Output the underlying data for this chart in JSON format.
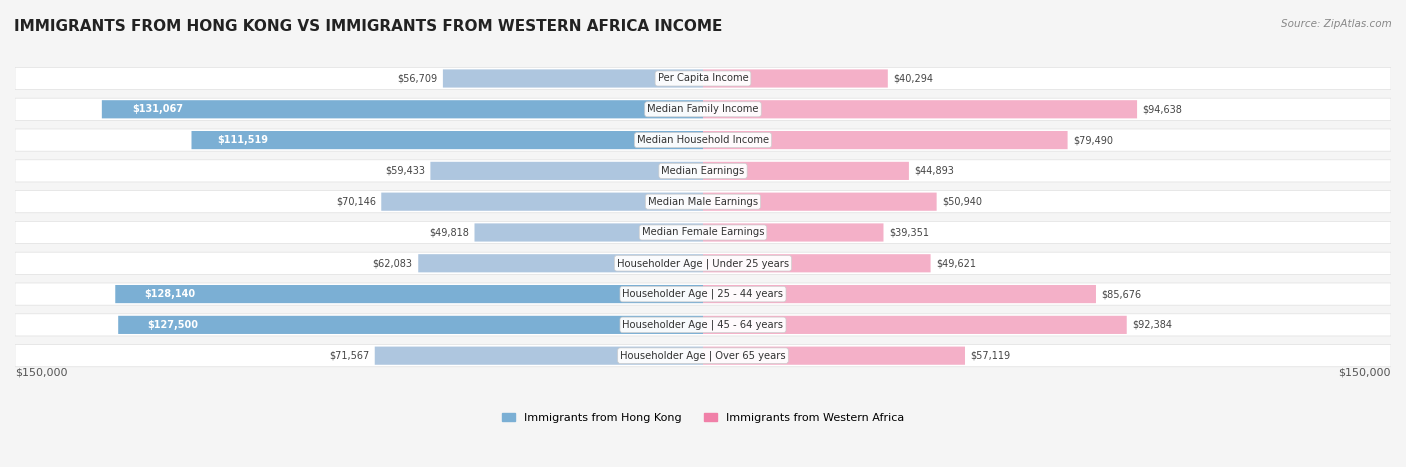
{
  "title": "IMMIGRANTS FROM HONG KONG VS IMMIGRANTS FROM WESTERN AFRICA INCOME",
  "source": "Source: ZipAtlas.com",
  "categories": [
    "Per Capita Income",
    "Median Family Income",
    "Median Household Income",
    "Median Earnings",
    "Median Male Earnings",
    "Median Female Earnings",
    "Householder Age | Under 25 years",
    "Householder Age | 25 - 44 years",
    "Householder Age | 45 - 64 years",
    "Householder Age | Over 65 years"
  ],
  "hk_values": [
    56709,
    131067,
    111519,
    59433,
    70146,
    49818,
    62083,
    128140,
    127500,
    71567
  ],
  "wa_values": [
    40294,
    94638,
    79490,
    44893,
    50940,
    39351,
    49621,
    85676,
    92384,
    57119
  ],
  "hk_labels": [
    "$56,709",
    "$131,067",
    "$111,519",
    "$59,433",
    "$70,146",
    "$49,818",
    "$62,083",
    "$128,140",
    "$127,500",
    "$71,567"
  ],
  "wa_labels": [
    "$40,294",
    "$94,638",
    "$79,490",
    "$44,893",
    "$50,940",
    "$39,351",
    "$49,621",
    "$85,676",
    "$92,384",
    "$57,119"
  ],
  "hk_color": "#a8c4e0",
  "wa_color": "#f4a0b8",
  "hk_color_full": "#6fa8d8",
  "wa_color_full": "#f06090",
  "max_value": 150000,
  "legend_hk": "Immigrants from Hong Kong",
  "legend_wa": "Immigrants from Western Africa",
  "background_color": "#f5f5f5",
  "row_background": "#ffffff",
  "label_threshold": 100000
}
